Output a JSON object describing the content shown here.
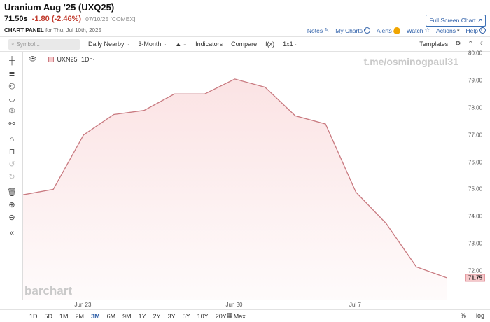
{
  "header": {
    "title": "Uranium Aug '25 (UXQ25)",
    "last": "71.50s",
    "change": "-1.80 (-2.46%)",
    "meta": "07/10/25 [COMEX]",
    "panel_label": "CHART PANEL",
    "panel_date": "for Thu, Jul 10th, 2025",
    "full_screen_label": "Full Screen Chart",
    "links": {
      "notes": "Notes",
      "my_charts": "My Charts",
      "alerts": "Alerts",
      "alerts_badge": "!",
      "watch": "Watch",
      "actions": "Actions",
      "help": "Help"
    }
  },
  "toolbar": {
    "symbol_placeholder": "Symbol...",
    "daily_nearby": "Daily Nearby",
    "period": "3-Month",
    "indicators": "Indicators",
    "compare": "Compare",
    "fx": "f(x)",
    "layout": "1x1",
    "templates": "Templates"
  },
  "left_tools": [
    "crosshair-icon",
    "text-icon",
    "shape-icon",
    "curve-icon",
    "number-icon",
    "pattern-icon",
    "magnet-icon",
    "lock-icon",
    "undo-icon",
    "redo-icon",
    "trash-icon",
    "zoom-in-icon",
    "zoom-out-icon",
    "collapse-icon"
  ],
  "watermarks": {
    "top": "t.me/osminogpaul31",
    "bottom": "barchart"
  },
  "legend": {
    "series": "UXN25 ·1Dn·"
  },
  "chart_data": {
    "type": "area",
    "x": [
      "2025-06-19",
      "2025-06-20",
      "2025-06-23",
      "2025-06-24",
      "2025-06-25",
      "2025-06-26",
      "2025-06-27",
      "2025-06-30",
      "2025-07-01",
      "2025-07-02",
      "2025-07-03",
      "2025-07-07",
      "2025-07-08",
      "2025-07-09",
      "2025-07-10"
    ],
    "series": [
      {
        "name": "UXN25",
        "values": [
          74.8,
          75.0,
          77.0,
          77.75,
          77.9,
          78.5,
          78.5,
          79.05,
          78.75,
          77.7,
          77.4,
          74.9,
          73.75,
          72.15,
          71.75
        ]
      }
    ],
    "ylim": [
      71.0,
      80.0
    ],
    "y_ticks": [
      72.0,
      73.0,
      74.0,
      75.0,
      76.0,
      77.0,
      78.0,
      79.0,
      80.0
    ],
    "y_tick_labels": [
      "72.00",
      "73.00",
      "74.00",
      "75.00",
      "76.00",
      "77.00",
      "78.00",
      "79.00",
      "80.00"
    ],
    "x_tick_labels": [
      {
        "label": "Jun 23",
        "date": "2025-06-23"
      },
      {
        "label": "Jun 30",
        "date": "2025-06-30"
      },
      {
        "label": "Jul 7",
        "date": "2025-07-07"
      }
    ],
    "last_value_label": "71.75",
    "line_color": "#c97a80",
    "fill_color": "#fbe3e4",
    "grid": false
  },
  "range_bar": {
    "ranges": [
      "1D",
      "5D",
      "1M",
      "2M",
      "3M",
      "6M",
      "9M",
      "1Y",
      "2Y",
      "3Y",
      "5Y",
      "10Y",
      "20Y",
      "Max"
    ],
    "active": "3M",
    "percent": "%",
    "log": "log"
  }
}
